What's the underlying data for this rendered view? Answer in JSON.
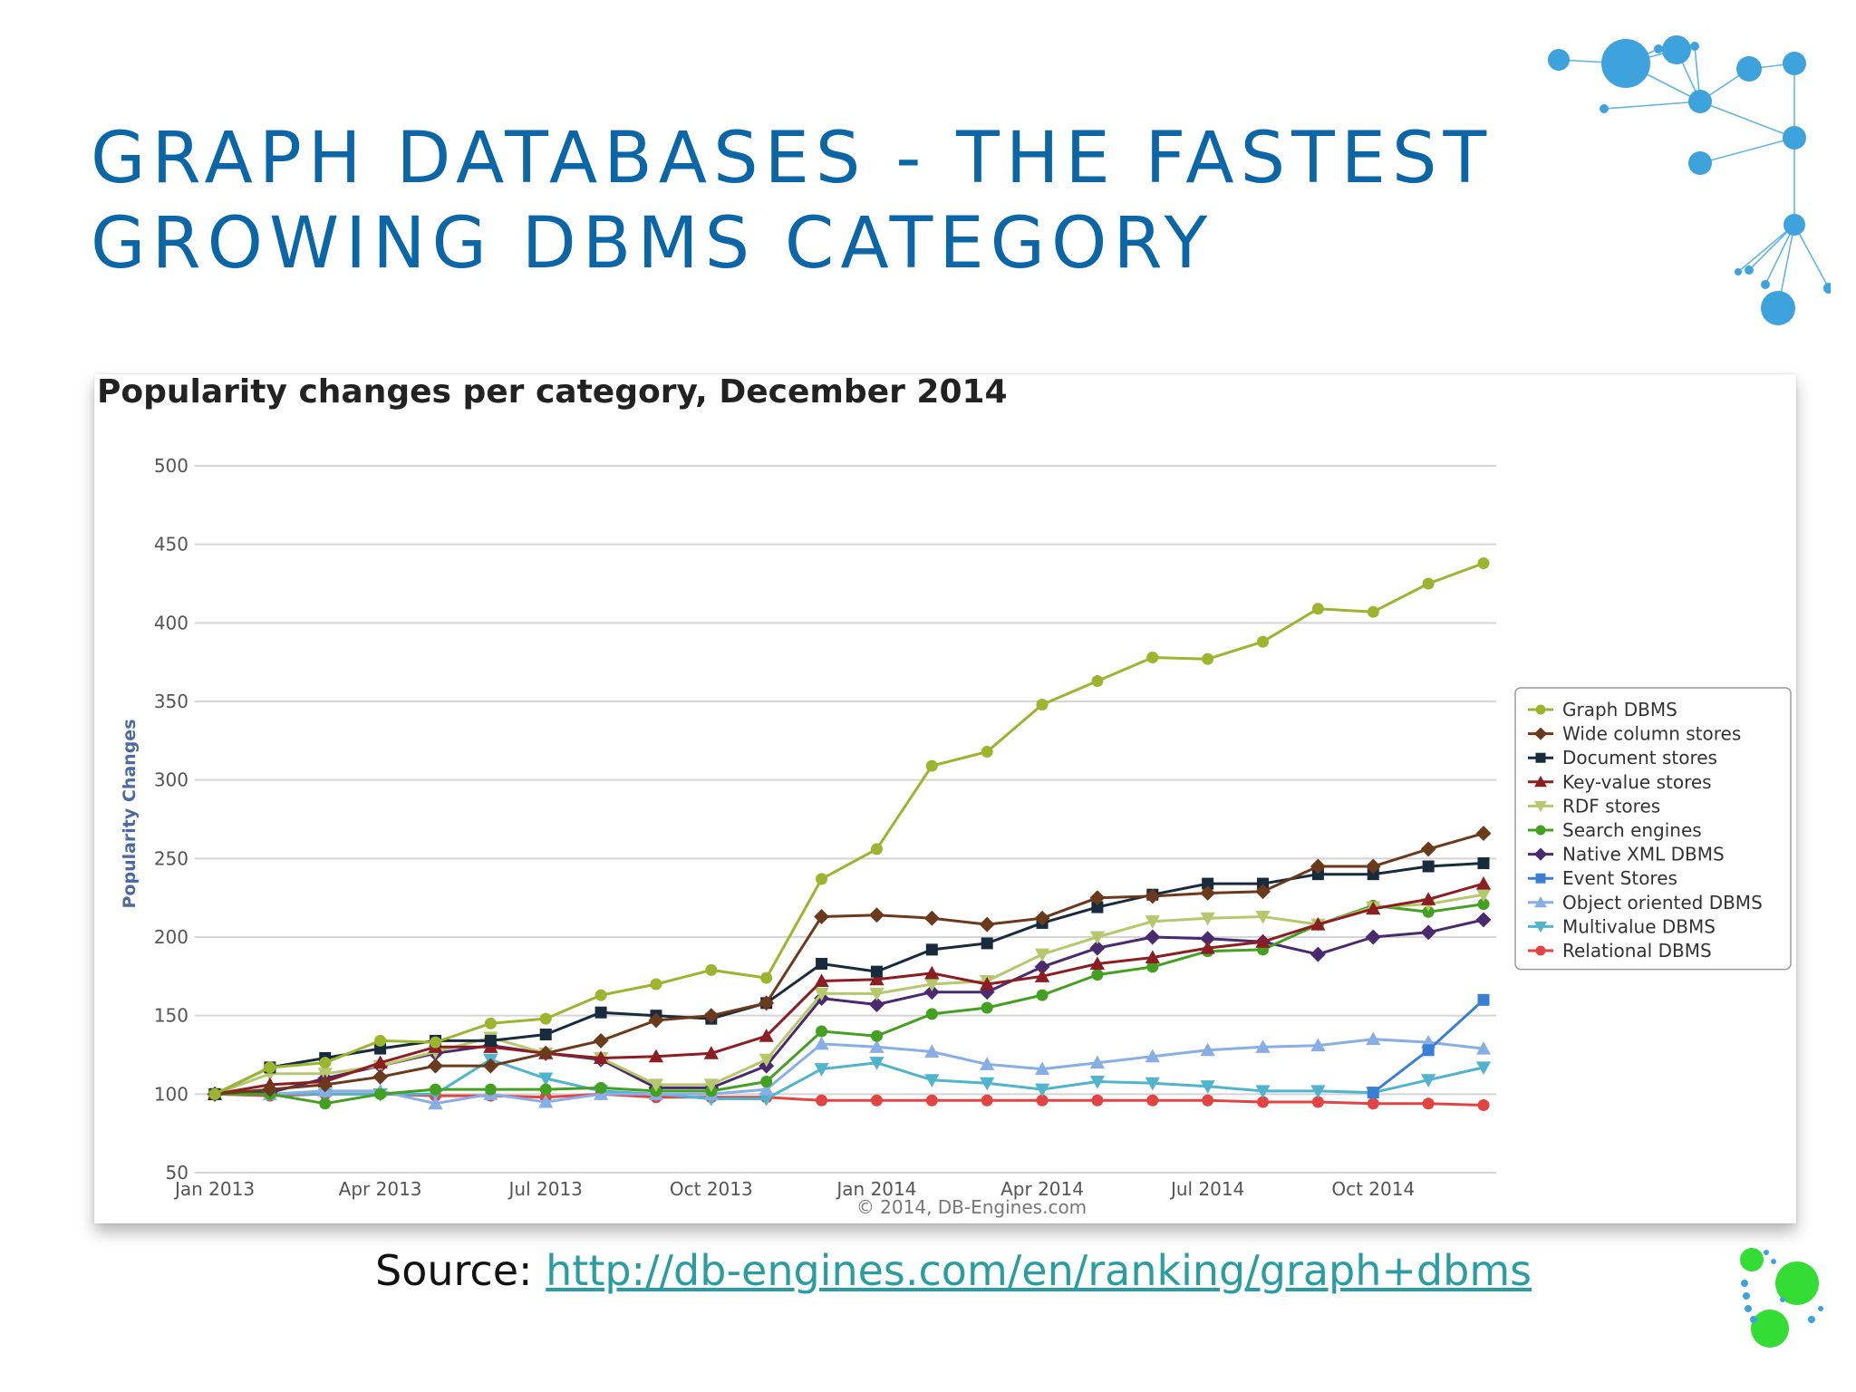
{
  "slide": {
    "title_line1": "GRAPH DATABASES - THE FASTEST",
    "title_line2": "GROWING DBMS CATEGORY",
    "source_label": "Source:",
    "source_link": "http://db-engines.com/en/ranking/graph+dbms"
  },
  "colors": {
    "title": "#0a66a6",
    "link": "#2a9da3",
    "network_dots": "#3ea3dc",
    "logo_dots": "#33dd33"
  },
  "chart_data": {
    "type": "line",
    "title": "Popularity changes per category, December 2014",
    "ylabel": "Popularity Changes",
    "xlabel": "",
    "credit": "© 2014, DB-Engines.com",
    "ylim": [
      50,
      500
    ],
    "yticks": [
      50,
      100,
      150,
      200,
      250,
      300,
      350,
      400,
      450,
      500
    ],
    "xlim": [
      "Jan 2013",
      "Dec 2014"
    ],
    "x_tick_labels": [
      "Jan 2013",
      "Apr 2013",
      "Jul 2013",
      "Oct 2013",
      "Jan 2014",
      "Apr 2014",
      "Jul 2014",
      "Oct 2014"
    ],
    "x_tick_months": [
      0,
      3,
      6,
      9,
      12,
      15,
      18,
      21
    ],
    "x": [
      "Jan 2013",
      "Feb 2013",
      "Mar 2013",
      "Apr 2013",
      "May 2013",
      "Jun 2013",
      "Jul 2013",
      "Aug 2013",
      "Sep 2013",
      "Oct 2013",
      "Nov 2013",
      "Dec 2013",
      "Jan 2014",
      "Feb 2014",
      "Mar 2014",
      "Apr 2014",
      "May 2014",
      "Jun 2014",
      "Jul 2014",
      "Aug 2014",
      "Sep 2014",
      "Oct 2014",
      "Nov 2014",
      "Dec 2014"
    ],
    "grid": true,
    "legend_position": "right",
    "series": [
      {
        "name": "Graph DBMS",
        "color": "#9bb52e",
        "marker": "circle",
        "values": [
          100,
          117,
          120,
          134,
          133,
          145,
          148,
          163,
          170,
          179,
          174,
          237,
          256,
          309,
          318,
          348,
          363,
          378,
          377,
          388,
          409,
          407,
          425,
          438
        ]
      },
      {
        "name": "Wide column stores",
        "color": "#6b3a1c",
        "marker": "diamond",
        "values": [
          100,
          103,
          106,
          111,
          118,
          118,
          126,
          134,
          147,
          150,
          158,
          213,
          214,
          212,
          208,
          212,
          225,
          226,
          228,
          229,
          245,
          245,
          256,
          266
        ]
      },
      {
        "name": "Document stores",
        "color": "#172b3c",
        "marker": "square",
        "values": [
          100,
          117,
          123,
          129,
          134,
          134,
          138,
          152,
          150,
          148,
          158,
          183,
          178,
          192,
          196,
          209,
          219,
          227,
          234,
          234,
          240,
          240,
          245,
          247
        ]
      },
      {
        "name": "Key-value stores",
        "color": "#8b1e22",
        "marker": "triangle-up",
        "values": [
          100,
          106,
          108,
          120,
          130,
          130,
          126,
          123,
          124,
          126,
          137,
          172,
          173,
          177,
          170,
          175,
          183,
          187,
          193,
          197,
          208,
          218,
          224,
          234
        ]
      },
      {
        "name": "RDF stores",
        "color": "#b6c86d",
        "marker": "triangle-down",
        "values": [
          100,
          113,
          113,
          118,
          127,
          136,
          126,
          123,
          106,
          106,
          122,
          164,
          164,
          170,
          172,
          189,
          200,
          210,
          212,
          213,
          208,
          219,
          221,
          227
        ]
      },
      {
        "name": "Search engines",
        "color": "#44a020",
        "marker": "circle",
        "values": [
          100,
          100,
          94,
          100,
          103,
          103,
          103,
          104,
          102,
          102,
          108,
          140,
          137,
          151,
          155,
          163,
          176,
          181,
          191,
          192,
          208,
          220,
          216,
          221
        ]
      },
      {
        "name": "Native XML DBMS",
        "color": "#4a2a6e",
        "marker": "diamond",
        "values": [
          100,
          101,
          110,
          118,
          126,
          131,
          126,
          122,
          104,
          104,
          118,
          161,
          157,
          165,
          165,
          181,
          193,
          200,
          199,
          197,
          189,
          200,
          203,
          211
        ]
      },
      {
        "name": "Event Stores",
        "color": "#3b7fd4",
        "marker": "square",
        "values": [
          null,
          null,
          null,
          null,
          null,
          null,
          null,
          null,
          null,
          null,
          null,
          null,
          null,
          null,
          null,
          null,
          null,
          null,
          null,
          null,
          null,
          101,
          128,
          160
        ]
      },
      {
        "name": "Object oriented DBMS",
        "color": "#88aee6",
        "marker": "triangle-up",
        "values": [
          100,
          100,
          102,
          102,
          94,
          100,
          95,
          100,
          100,
          100,
          103,
          132,
          130,
          127,
          119,
          116,
          120,
          124,
          128,
          130,
          131,
          135,
          133,
          129
        ]
      },
      {
        "name": "Multivalue DBMS",
        "color": "#4fb4cc",
        "marker": "triangle-down",
        "values": [
          100,
          100,
          100,
          100,
          100,
          122,
          110,
          102,
          100,
          97,
          97,
          116,
          120,
          109,
          107,
          103,
          108,
          107,
          105,
          102,
          102,
          101,
          109,
          117
        ]
      },
      {
        "name": "Relational DBMS",
        "color": "#e24444",
        "marker": "circle",
        "values": [
          100,
          99,
          100,
          100,
          99,
          99,
          98,
          100,
          98,
          98,
          98,
          96,
          96,
          96,
          96,
          96,
          96,
          96,
          96,
          95,
          95,
          94,
          94,
          93
        ]
      }
    ]
  }
}
